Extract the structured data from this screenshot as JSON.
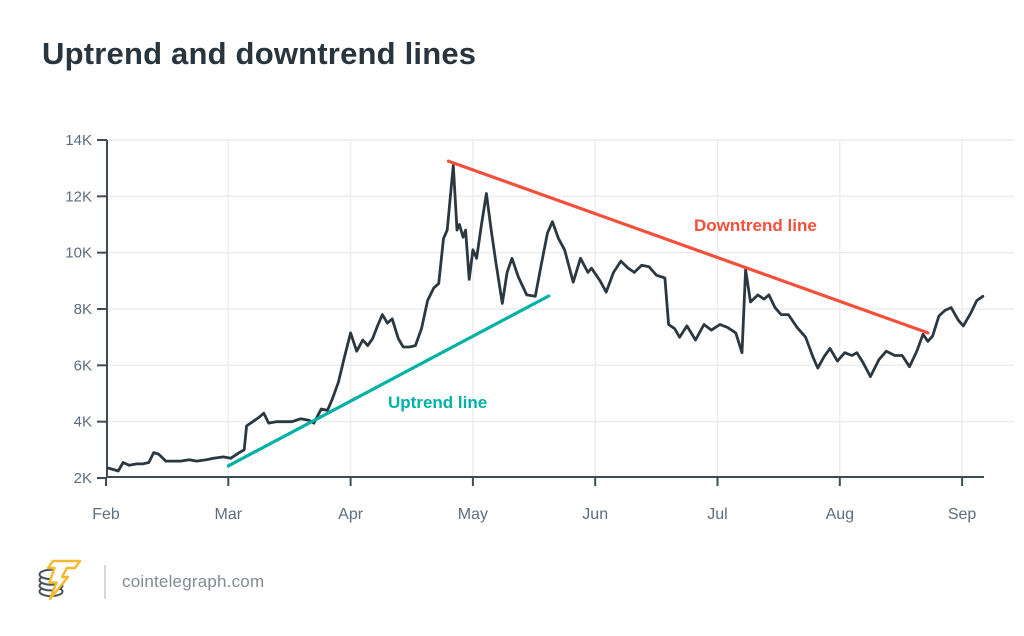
{
  "title": "Uptrend and downtrend lines",
  "footer": {
    "site": "cointelegraph.com"
  },
  "colors": {
    "title": "#28343e",
    "axis_line": "#3f4c58",
    "axis_label": "#5d6d7d",
    "grid": "#ececec",
    "price_line": "#2b3842",
    "uptrend": "#00b2a3",
    "downtrend": "#f3503b",
    "background": "#ffffff"
  },
  "chart_data": {
    "type": "line",
    "title": "Uptrend and downtrend lines",
    "xlabel": "",
    "ylabel": "",
    "x_unit": "months (0 = Feb, 7 = Sep)",
    "y_unit": "price, thousands",
    "xlim": [
      0,
      7.3
    ],
    "ylim": [
      2,
      14
    ],
    "grid": true,
    "x_tick_labels": [
      "Feb",
      "Mar",
      "Apr",
      "May",
      "Jun",
      "Jul",
      "Aug",
      "Sep"
    ],
    "x_tick_positions": [
      0,
      1,
      2,
      3,
      4,
      5,
      6,
      7
    ],
    "y_tick_labels": [
      "2K",
      "4K",
      "6K",
      "8K",
      "10K",
      "12K",
      "14K"
    ],
    "y_tick_positions": [
      2,
      4,
      6,
      8,
      10,
      12,
      14
    ],
    "series": [
      {
        "name": "price",
        "kind": "price-line",
        "color": "#2b3842",
        "width": 2.8,
        "x": [
          0.02,
          0.06,
          0.1,
          0.14,
          0.19,
          0.25,
          0.3,
          0.35,
          0.39,
          0.43,
          0.49,
          0.55,
          0.61,
          0.68,
          0.74,
          0.82,
          0.88,
          0.96,
          1.02,
          1.09,
          1.13,
          1.15,
          1.2,
          1.25,
          1.29,
          1.33,
          1.39,
          1.45,
          1.52,
          1.59,
          1.66,
          1.7,
          1.76,
          1.81,
          1.85,
          1.9,
          1.95,
          2.0,
          2.05,
          2.1,
          2.14,
          2.18,
          2.22,
          2.26,
          2.3,
          2.34,
          2.39,
          2.43,
          2.48,
          2.53,
          2.58,
          2.63,
          2.68,
          2.72,
          2.76,
          2.79,
          2.84,
          2.87,
          2.89,
          2.92,
          2.94,
          2.97,
          3.0,
          3.03,
          3.07,
          3.11,
          3.15,
          3.19,
          3.24,
          3.28,
          3.32,
          3.37,
          3.44,
          3.51,
          3.56,
          3.61,
          3.65,
          3.7,
          3.75,
          3.82,
          3.88,
          3.94,
          3.97,
          4.04,
          4.09,
          4.15,
          4.21,
          4.27,
          4.32,
          4.38,
          4.44,
          4.5,
          4.57,
          4.6,
          4.65,
          4.69,
          4.75,
          4.82,
          4.89,
          4.95,
          5.02,
          5.08,
          5.15,
          5.2,
          5.23,
          5.27,
          5.33,
          5.38,
          5.42,
          5.47,
          5.52,
          5.58,
          5.65,
          5.72,
          5.78,
          5.82,
          5.87,
          5.92,
          5.98,
          6.04,
          6.1,
          6.14,
          6.19,
          6.25,
          6.32,
          6.38,
          6.45,
          6.51,
          6.57,
          6.63,
          6.68,
          6.72,
          6.76,
          6.81,
          6.86,
          6.91,
          6.97,
          7.01,
          7.07,
          7.12,
          7.17
        ],
        "values": [
          2.35,
          2.3,
          2.25,
          2.55,
          2.45,
          2.5,
          2.5,
          2.55,
          2.9,
          2.85,
          2.6,
          2.6,
          2.6,
          2.65,
          2.6,
          2.65,
          2.7,
          2.75,
          2.7,
          2.9,
          3.0,
          3.85,
          4.0,
          4.15,
          4.3,
          3.95,
          4.0,
          4.0,
          4.0,
          4.1,
          4.05,
          3.95,
          4.45,
          4.4,
          4.8,
          5.4,
          6.3,
          7.15,
          6.5,
          6.9,
          6.7,
          6.95,
          7.4,
          7.8,
          7.5,
          7.65,
          6.95,
          6.65,
          6.65,
          6.7,
          7.3,
          8.3,
          8.75,
          8.9,
          10.5,
          10.8,
          13.1,
          10.8,
          11.0,
          10.55,
          10.8,
          9.05,
          10.1,
          9.8,
          11.0,
          12.1,
          10.8,
          9.6,
          8.2,
          9.3,
          9.8,
          9.15,
          8.5,
          8.45,
          9.6,
          10.7,
          11.1,
          10.5,
          10.1,
          8.95,
          9.8,
          9.3,
          9.45,
          9.0,
          8.6,
          9.3,
          9.7,
          9.45,
          9.3,
          9.55,
          9.5,
          9.2,
          9.1,
          7.45,
          7.3,
          7.0,
          7.4,
          6.9,
          7.45,
          7.25,
          7.45,
          7.35,
          7.15,
          6.45,
          9.4,
          8.25,
          8.5,
          8.35,
          8.5,
          8.05,
          7.8,
          7.8,
          7.35,
          7.0,
          6.3,
          5.9,
          6.3,
          6.6,
          6.15,
          6.45,
          6.35,
          6.45,
          6.1,
          5.6,
          6.2,
          6.5,
          6.35,
          6.35,
          5.95,
          6.5,
          7.1,
          6.85,
          7.05,
          7.75,
          7.95,
          8.05,
          7.6,
          7.4,
          7.85,
          8.3,
          8.45
        ]
      },
      {
        "name": "Uptrend line",
        "kind": "trendline",
        "color": "#00b2a3",
        "width": 3.2,
        "x": [
          1.0,
          3.62
        ],
        "values": [
          2.43,
          8.46
        ]
      },
      {
        "name": "Downtrend line",
        "kind": "trendline",
        "color": "#f3503b",
        "width": 3.2,
        "x": [
          2.8,
          6.72
        ],
        "values": [
          13.25,
          7.15
        ]
      }
    ],
    "annotations": [
      {
        "text": "Uptrend line",
        "color": "#00b2a3"
      },
      {
        "text": "Downtrend line",
        "color": "#f3503b"
      }
    ],
    "legend": "none"
  }
}
